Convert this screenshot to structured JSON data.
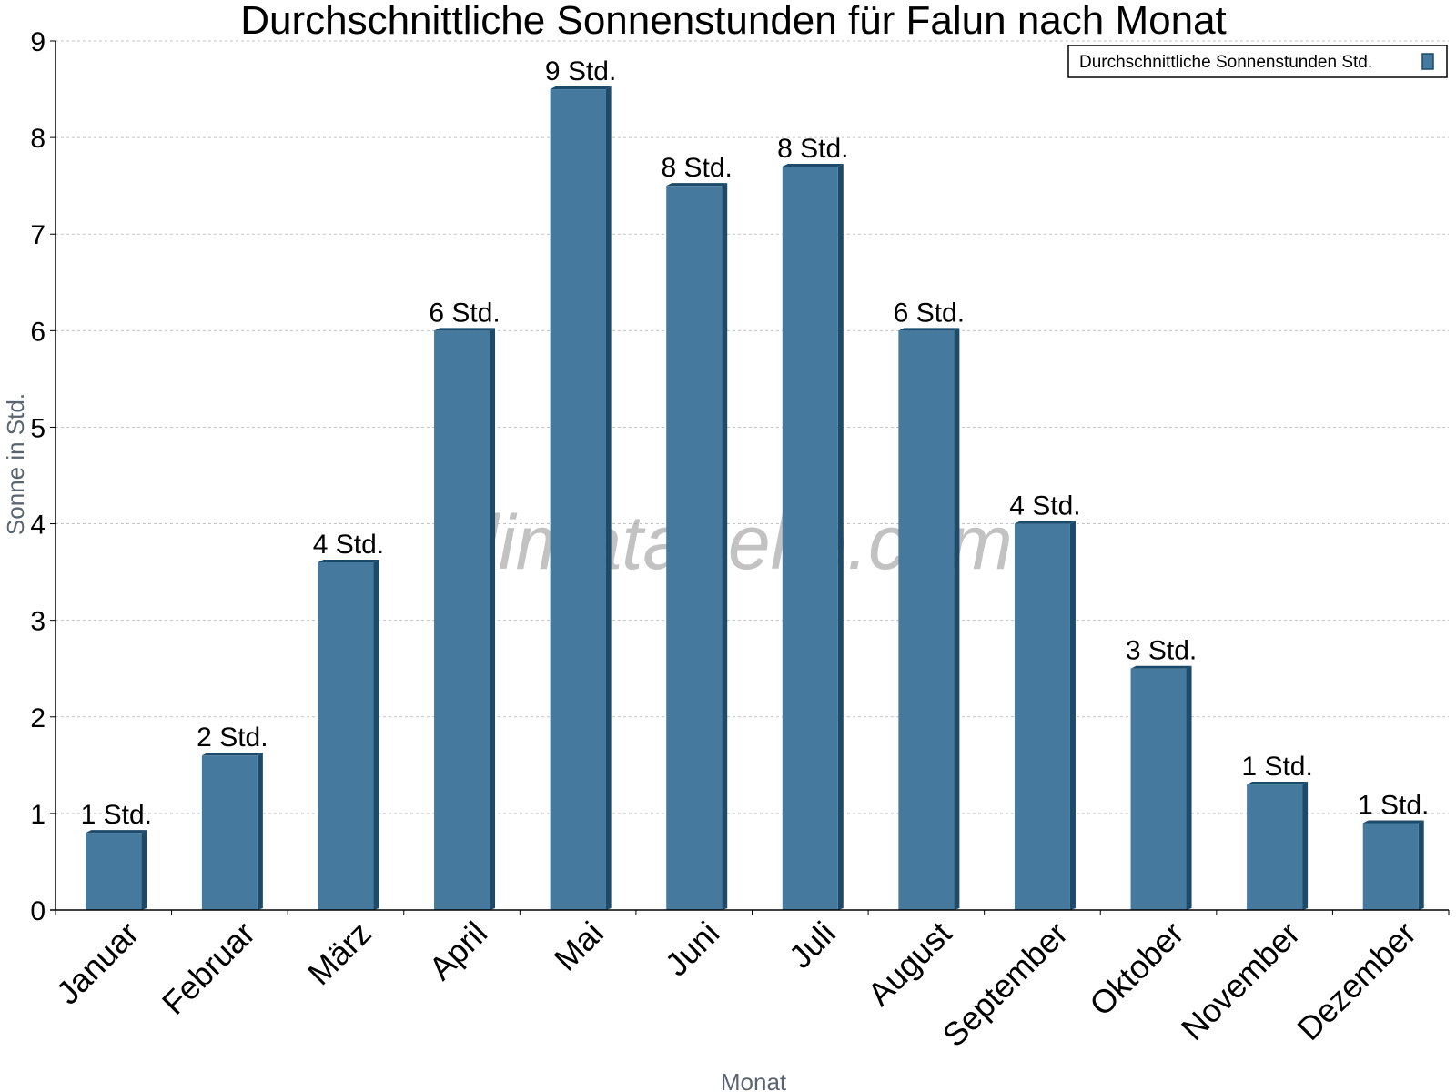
{
  "chart_data": {
    "type": "bar",
    "title": "Durchschnittliche Sonnenstunden für Falun nach Monat",
    "xlabel": "Monat",
    "ylabel": "Sonne in Std.",
    "ylim": [
      0,
      9
    ],
    "yticks": [
      "0",
      "1",
      "2",
      "3",
      "4",
      "5",
      "6",
      "7",
      "8",
      "9"
    ],
    "grid": true,
    "legend_position": "top-right",
    "categories": [
      "Januar",
      "Februar",
      "März",
      "April",
      "Mai",
      "Juni",
      "Juli",
      "August",
      "September",
      "Oktober",
      "November",
      "Dezember"
    ],
    "series": [
      {
        "name": "Durchschnittliche Sonnenstunden Std.",
        "color": "#457a9e",
        "values": [
          0.8,
          1.6,
          3.6,
          6.0,
          8.5,
          7.5,
          7.7,
          6.0,
          4.0,
          2.5,
          1.3,
          0.9
        ],
        "data_labels": [
          "1 Std.",
          "2 Std.",
          "4 Std.",
          "6 Std.",
          "9 Std.",
          "8 Std.",
          "8 Std.",
          "6 Std.",
          "4 Std.",
          "3 Std.",
          "1 Std.",
          "1 Std."
        ]
      }
    ],
    "watermark": "klimatabelle.com"
  }
}
